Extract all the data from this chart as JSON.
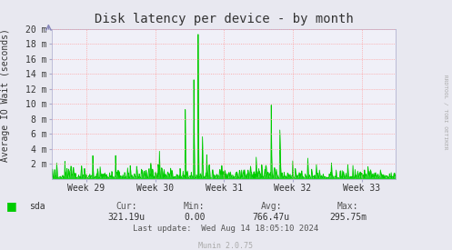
{
  "title": "Disk latency per device - by month",
  "ylabel": "Average IO Wait (seconds)",
  "watermark": "RRDTOOL / TOBI OETIKER",
  "munin_version": "Munin 2.0.75",
  "legend_label": "sda",
  "legend_color": "#00cc00",
  "cur_label": "Cur:",
  "cur_value": "321.19u",
  "min_label": "Min:",
  "min_value": "0.00",
  "avg_label": "Avg:",
  "avg_value": "766.47u",
  "max_label": "Max:",
  "max_value": "295.75m",
  "last_update": "Last update:  Wed Aug 14 18:05:10 2024",
  "x_tick_labels": [
    "Week 29",
    "Week 30",
    "Week 31",
    "Week 32",
    "Week 33"
  ],
  "ylim": [
    0,
    0.02
  ],
  "ytick_values": [
    0.002,
    0.004,
    0.006,
    0.008,
    0.01,
    0.012,
    0.014,
    0.016,
    0.018,
    0.02
  ],
  "ytick_labels": [
    "2 m",
    "4 m",
    "6 m",
    "8 m",
    "10 m",
    "12 m",
    "14 m",
    "16 m",
    "18 m",
    "20 m"
  ],
  "bg_color": "#e8e8f0",
  "plot_bg_color": "#f0f0f8",
  "grid_color": "#ff9999",
  "line_color": "#00cc00",
  "title_fontsize": 10,
  "axis_fontsize": 7,
  "tick_fontsize": 7,
  "num_points": 800,
  "spike_positions": [
    30,
    95,
    148,
    250,
    310,
    330,
    340,
    350,
    360,
    365,
    395,
    430,
    510,
    530,
    560,
    595,
    650,
    700
  ],
  "spike_heights": [
    0.002,
    0.0025,
    0.003,
    0.0035,
    0.009,
    0.013,
    0.019,
    0.005,
    0.003,
    0.0015,
    0.001,
    0.0008,
    0.0095,
    0.006,
    0.002,
    0.0025,
    0.002,
    0.0015
  ]
}
